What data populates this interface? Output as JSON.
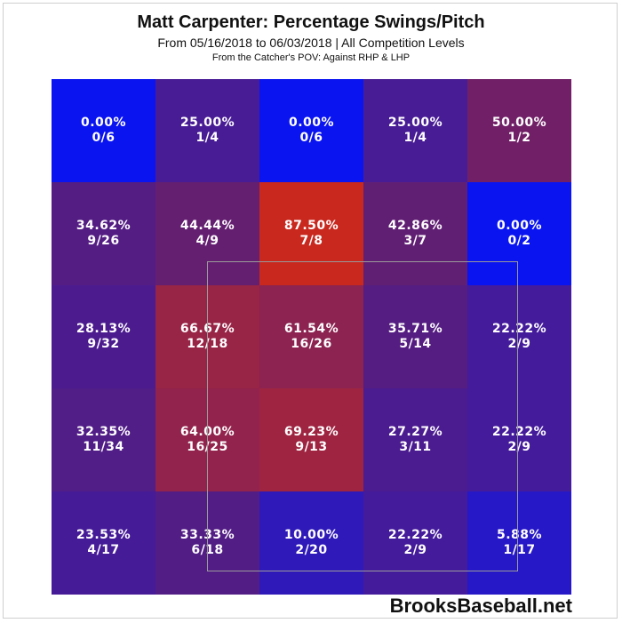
{
  "title": "Matt Carpenter: Percentage Swings/Pitch",
  "subtitle": "From 05/16/2018 to 06/03/2018 | All Competition Levels",
  "note": "From the Catcher's POV:   Against RHP & LHP",
  "watermark": "BrooksBaseball.net",
  "colors": {
    "cold": "#0a14f0",
    "mid": "#5a1e7a",
    "hot": "#c8281e",
    "text": "#ffffff",
    "zone_border": "#9a9a9a"
  },
  "chart_data": {
    "type": "heatmap",
    "rows": 5,
    "cols": 5,
    "strike_zone": {
      "rows": [
        1,
        3
      ],
      "cols": [
        1,
        3
      ]
    },
    "cells": [
      [
        {
          "pct": "0.00%",
          "frac": "0/6",
          "value": 0.0
        },
        {
          "pct": "25.00%",
          "frac": "1/4",
          "value": 25.0
        },
        {
          "pct": "0.00%",
          "frac": "0/6",
          "value": 0.0
        },
        {
          "pct": "25.00%",
          "frac": "1/4",
          "value": 25.0
        },
        {
          "pct": "50.00%",
          "frac": "1/2",
          "value": 50.0
        }
      ],
      [
        {
          "pct": "34.62%",
          "frac": "9/26",
          "value": 34.62
        },
        {
          "pct": "44.44%",
          "frac": "4/9",
          "value": 44.44
        },
        {
          "pct": "87.50%",
          "frac": "7/8",
          "value": 87.5
        },
        {
          "pct": "42.86%",
          "frac": "3/7",
          "value": 42.86
        },
        {
          "pct": "0.00%",
          "frac": "0/2",
          "value": 0.0
        }
      ],
      [
        {
          "pct": "28.13%",
          "frac": "9/32",
          "value": 28.13
        },
        {
          "pct": "66.67%",
          "frac": "12/18",
          "value": 66.67
        },
        {
          "pct": "61.54%",
          "frac": "16/26",
          "value": 61.54
        },
        {
          "pct": "35.71%",
          "frac": "5/14",
          "value": 35.71
        },
        {
          "pct": "22.22%",
          "frac": "2/9",
          "value": 22.22
        }
      ],
      [
        {
          "pct": "32.35%",
          "frac": "11/34",
          "value": 32.35
        },
        {
          "pct": "64.00%",
          "frac": "16/25",
          "value": 64.0
        },
        {
          "pct": "69.23%",
          "frac": "9/13",
          "value": 69.23
        },
        {
          "pct": "27.27%",
          "frac": "3/11",
          "value": 27.27
        },
        {
          "pct": "22.22%",
          "frac": "2/9",
          "value": 22.22
        }
      ],
      [
        {
          "pct": "23.53%",
          "frac": "4/17",
          "value": 23.53
        },
        {
          "pct": "33.33%",
          "frac": "6/18",
          "value": 33.33
        },
        {
          "pct": "10.00%",
          "frac": "2/20",
          "value": 10.0
        },
        {
          "pct": "22.22%",
          "frac": "2/9",
          "value": 22.22
        },
        {
          "pct": "5.88%",
          "frac": "1/17",
          "value": 5.88
        }
      ]
    ]
  }
}
